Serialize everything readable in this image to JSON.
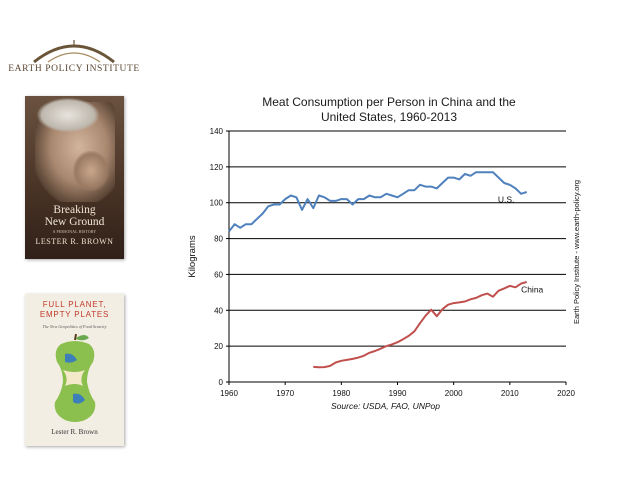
{
  "logo": {
    "text": "EARTH POLICY INSTITUTE"
  },
  "books": [
    {
      "title_line1": "Breaking",
      "title_line2": "New Ground",
      "subtitle": "A PERSONAL HISTORY",
      "author": "LESTER R. BROWN"
    },
    {
      "title_line1": "FULL PLANET,",
      "title_line2": "EMPTY PLATES",
      "subtitle": "The New Geopolitics of Food Scarcity",
      "author": "Lester R. Brown"
    }
  ],
  "side_credit": "Earth Policy Institute - www.earth-policy.org",
  "chart_data": {
    "type": "line",
    "title": "Meat Consumption per Person in China and the United States, 1960-2013",
    "title_line1": "Meat Consumption per Person in China and the",
    "title_line2": "United States, 1960-2013",
    "xlabel": "Source: USDA, FAO, UNPop",
    "ylabel": "Kilograms",
    "xlim": [
      1960,
      2020
    ],
    "ylim": [
      0,
      140
    ],
    "xticks": [
      1960,
      1970,
      1980,
      1990,
      2000,
      2010,
      2020
    ],
    "yticks": [
      0,
      20,
      40,
      60,
      80,
      100,
      120,
      140
    ],
    "grid": "horizontal",
    "series": [
      {
        "name": "U.S.",
        "color": "#4f81bd",
        "x": [
          1960,
          1961,
          1962,
          1963,
          1964,
          1965,
          1966,
          1967,
          1968,
          1969,
          1970,
          1971,
          1972,
          1973,
          1974,
          1975,
          1976,
          1977,
          1978,
          1979,
          1980,
          1981,
          1982,
          1983,
          1984,
          1985,
          1986,
          1987,
          1988,
          1989,
          1990,
          1991,
          1992,
          1993,
          1994,
          1995,
          1996,
          1997,
          1998,
          1999,
          2000,
          2001,
          2002,
          2003,
          2004,
          2005,
          2006,
          2007,
          2008,
          2009,
          2010,
          2011,
          2012,
          2013
        ],
        "values": [
          84,
          88,
          86,
          88,
          88,
          91,
          94,
          98,
          99,
          99,
          102,
          104,
          103,
          96,
          102,
          97,
          104,
          103,
          101,
          101,
          102,
          102,
          99,
          102,
          102,
          104,
          103,
          103,
          105,
          104,
          103,
          105,
          107,
          107,
          110,
          109,
          109,
          108,
          111,
          114,
          114,
          113,
          116,
          115,
          117,
          117,
          117,
          117,
          114,
          111,
          110,
          108,
          105,
          106
        ]
      },
      {
        "name": "China",
        "color": "#c0504d",
        "x": [
          1975,
          1976,
          1977,
          1978,
          1979,
          1980,
          1981,
          1982,
          1983,
          1984,
          1985,
          1986,
          1987,
          1988,
          1989,
          1990,
          1991,
          1992,
          1993,
          1994,
          1995,
          1996,
          1997,
          1998,
          1999,
          2000,
          2001,
          2002,
          2003,
          2004,
          2005,
          2006,
          2007,
          2008,
          2009,
          2010,
          2011,
          2012,
          2013
        ],
        "values": [
          8.4,
          8.2,
          8.3,
          9.0,
          10.9,
          11.8,
          12.3,
          12.9,
          13.6,
          14.6,
          16.3,
          17.3,
          18.6,
          20.0,
          21.0,
          22.2,
          23.9,
          25.7,
          28.3,
          32.8,
          37.0,
          40.3,
          36.7,
          40.6,
          43.1,
          44.0,
          44.4,
          44.9,
          46.1,
          46.9,
          48.4,
          49.3,
          47.6,
          50.9,
          52.2,
          53.6,
          52.8,
          54.9,
          55.8
        ]
      }
    ]
  }
}
